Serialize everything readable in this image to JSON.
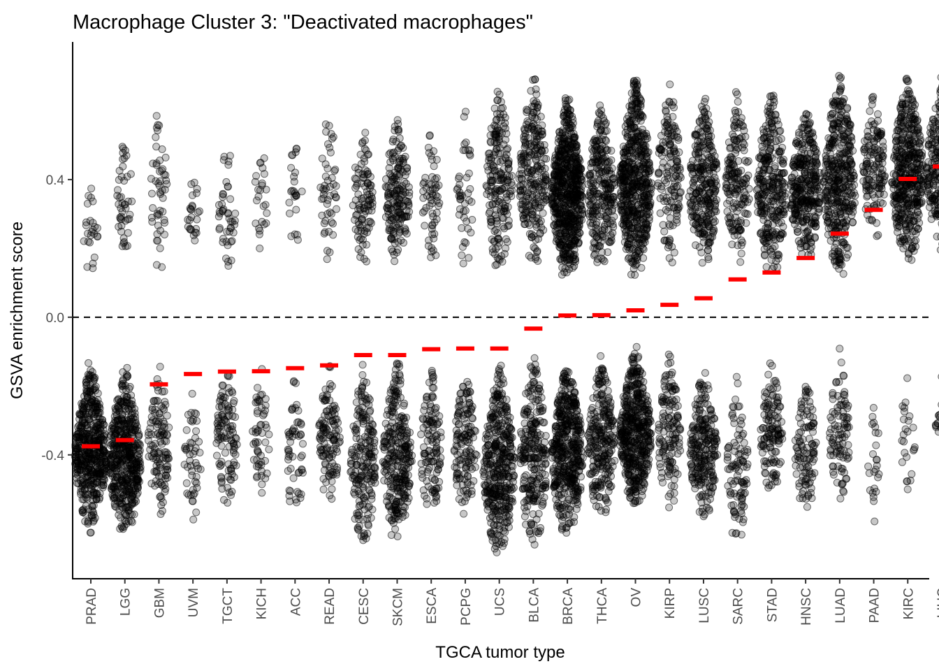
{
  "chart_data": {
    "type": "scatter",
    "title": "Macrophage Cluster 3: \"Deactivated macrophages\"",
    "xlabel": "TGCA tumor type",
    "ylabel": "GSVA enrichment score",
    "ylim": [
      -0.76,
      0.8
    ],
    "yticks": [
      -0.4,
      0.0,
      0.4
    ],
    "ytick_labels": [
      "-0.4",
      "0.0",
      "0.4"
    ],
    "reference_line": {
      "y": 0.0,
      "style": "dashed"
    },
    "grid": false,
    "point_color": "#000000",
    "median_color": "#ff0000",
    "categories": [
      "PRAD",
      "LGG",
      "GBM",
      "UVM",
      "TGCT",
      "KICH",
      "ACC",
      "READ",
      "CESC",
      "SKCM",
      "ESCA",
      "PCPG",
      "UCS",
      "BLCA",
      "BRCA",
      "THCA",
      "OV",
      "KIRP",
      "LUSC",
      "SARC",
      "STAD",
      "HNSC",
      "LUAD",
      "PAAD",
      "KIRC",
      "LIHC"
    ],
    "medians": [
      -0.375,
      -0.357,
      -0.195,
      -0.165,
      -0.158,
      -0.157,
      -0.148,
      -0.14,
      -0.11,
      -0.11,
      -0.093,
      -0.091,
      -0.091,
      -0.033,
      0.005,
      0.006,
      0.02,
      0.036,
      0.055,
      0.11,
      0.13,
      0.172,
      0.243,
      0.312,
      0.402,
      0.438
    ],
    "groups": [
      {
        "name": "PRAD",
        "upper": [
          0.12,
          0.39
        ],
        "upper_n": 25,
        "lower": [
          -0.63,
          -0.13
        ],
        "lower_n": 500
      },
      {
        "name": "LGG",
        "upper": [
          0.14,
          0.54
        ],
        "upper_n": 45,
        "lower": [
          -0.64,
          -0.14
        ],
        "lower_n": 480
      },
      {
        "name": "GBM",
        "upper": [
          0.12,
          0.65
        ],
        "upper_n": 50,
        "lower": [
          -0.58,
          -0.13
        ],
        "lower_n": 120
      },
      {
        "name": "UVM",
        "upper": [
          0.2,
          0.43
        ],
        "upper_n": 25,
        "lower": [
          -0.59,
          -0.19
        ],
        "lower_n": 50
      },
      {
        "name": "TGCT",
        "upper": [
          0.11,
          0.54
        ],
        "upper_n": 45,
        "lower": [
          -0.56,
          -0.12
        ],
        "lower_n": 110
      },
      {
        "name": "KICH",
        "upper": [
          0.18,
          0.54
        ],
        "upper_n": 25,
        "lower": [
          -0.55,
          -0.13
        ],
        "lower_n": 55
      },
      {
        "name": "ACC",
        "upper": [
          0.19,
          0.54
        ],
        "upper_n": 25,
        "lower": [
          -0.6,
          -0.16
        ],
        "lower_n": 55
      },
      {
        "name": "READ",
        "upper": [
          0.15,
          0.63
        ],
        "upper_n": 50,
        "lower": [
          -0.56,
          -0.13
        ],
        "lower_n": 120
      },
      {
        "name": "CESC",
        "upper": [
          0.15,
          0.57
        ],
        "upper_n": 100,
        "lower": [
          -0.68,
          -0.13
        ],
        "lower_n": 200
      },
      {
        "name": "SKCM",
        "upper": [
          0.14,
          0.59
        ],
        "upper_n": 180,
        "lower": [
          -0.66,
          -0.12
        ],
        "lower_n": 290
      },
      {
        "name": "ESCA",
        "upper": [
          0.13,
          0.57
        ],
        "upper_n": 60,
        "lower": [
          -0.59,
          -0.13
        ],
        "lower_n": 120
      },
      {
        "name": "PCPG",
        "upper": [
          0.13,
          0.62
        ],
        "upper_n": 45,
        "lower": [
          -0.61,
          -0.14
        ],
        "lower_n": 140
      },
      {
        "name": "UCS",
        "upper": [
          0.13,
          0.69
        ],
        "upper_n": 200,
        "lower": [
          -0.7,
          -0.13
        ],
        "lower_n": 400
      },
      {
        "name": "BLCA",
        "upper": [
          0.14,
          0.71
        ],
        "upper_n": 250,
        "lower": [
          -0.67,
          -0.1
        ],
        "lower_n": 250
      },
      {
        "name": "BRCA",
        "upper": [
          0.11,
          0.64
        ],
        "upper_n": 650,
        "lower": [
          -0.64,
          -0.12
        ],
        "lower_n": 460
      },
      {
        "name": "THCA",
        "upper": [
          0.12,
          0.63
        ],
        "upper_n": 260,
        "lower": [
          -0.59,
          -0.11
        ],
        "lower_n": 250
      },
      {
        "name": "OV",
        "upper": [
          0.11,
          0.71
        ],
        "upper_n": 550,
        "lower": [
          -0.55,
          -0.08
        ],
        "lower_n": 480
      },
      {
        "name": "KIRP",
        "upper": [
          0.14,
          0.71
        ],
        "upper_n": 150,
        "lower": [
          -0.57,
          -0.1
        ],
        "lower_n": 140
      },
      {
        "name": "LUSC",
        "upper": [
          0.14,
          0.65
        ],
        "upper_n": 280,
        "lower": [
          -0.59,
          -0.14
        ],
        "lower_n": 240
      },
      {
        "name": "SARC",
        "upper": [
          0.15,
          0.66
        ],
        "upper_n": 170,
        "lower": [
          -0.68,
          -0.14
        ],
        "lower_n": 100
      },
      {
        "name": "STAD",
        "upper": [
          0.12,
          0.67
        ],
        "upper_n": 300,
        "lower": [
          -0.54,
          -0.12
        ],
        "lower_n": 130
      },
      {
        "name": "HNSC",
        "upper": [
          0.16,
          0.62
        ],
        "upper_n": 330,
        "lower": [
          -0.58,
          -0.16
        ],
        "lower_n": 110
      },
      {
        "name": "LUAD",
        "upper": [
          0.11,
          0.73
        ],
        "upper_n": 400,
        "lower": [
          -0.55,
          -0.09
        ],
        "lower_n": 100
      },
      {
        "name": "PAAD",
        "upper": [
          0.22,
          0.66
        ],
        "upper_n": 140,
        "lower": [
          -0.61,
          -0.17
        ],
        "lower_n": 25
      },
      {
        "name": "KIRC",
        "upper": [
          0.15,
          0.72
        ],
        "upper_n": 450,
        "lower": [
          -0.52,
          -0.14
        ],
        "lower_n": 25
      },
      {
        "name": "LIHC",
        "upper": [
          0.19,
          0.71
        ],
        "upper_n": 330,
        "lower": [
          -0.42,
          -0.15
        ],
        "lower_n": 25
      }
    ]
  }
}
